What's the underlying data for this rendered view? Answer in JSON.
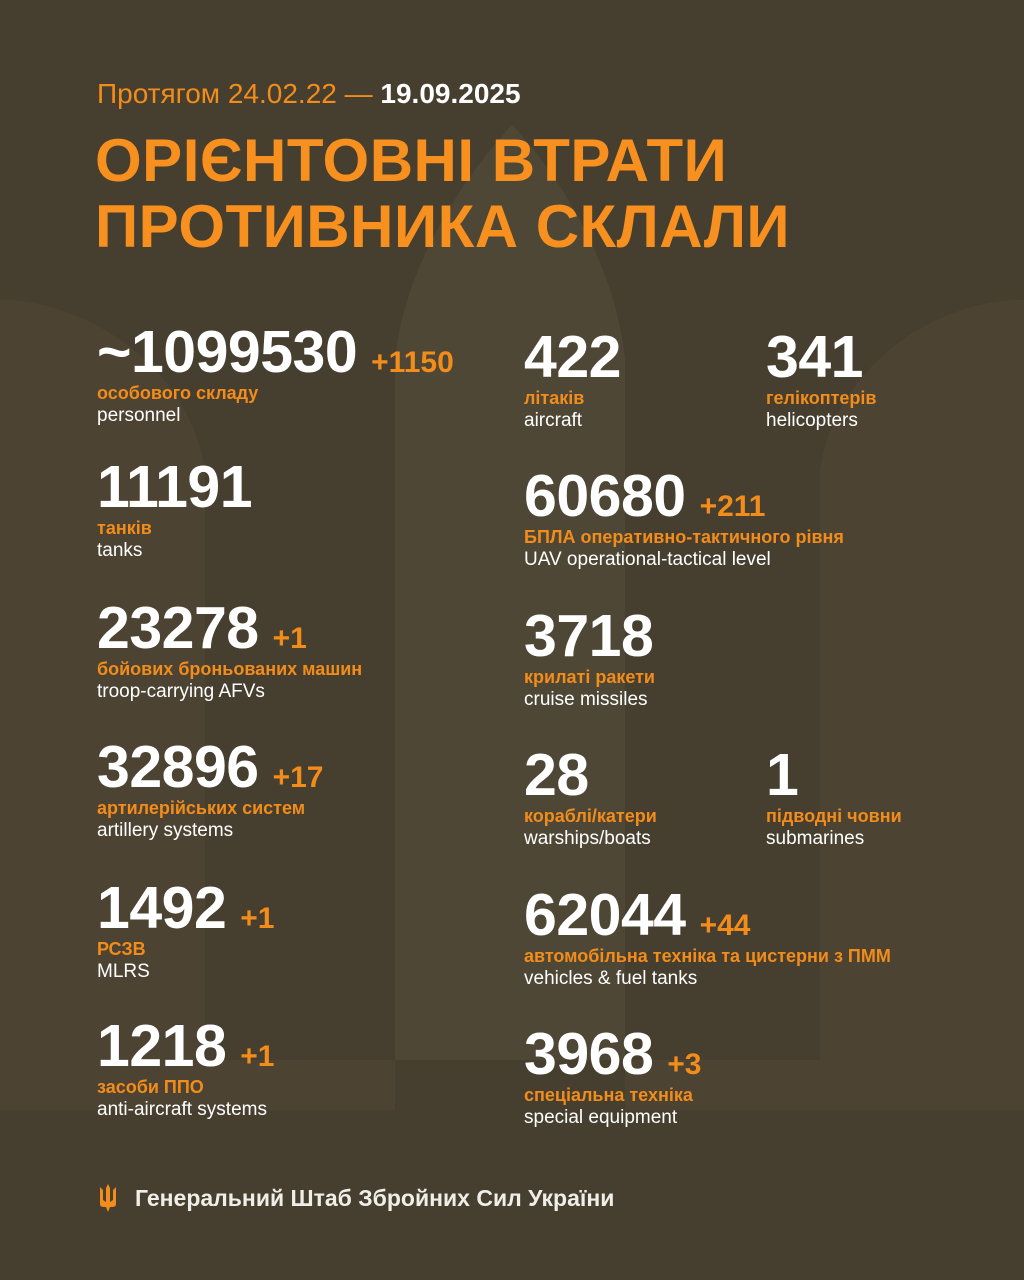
{
  "header": {
    "period_prefix": "Протягом 24.02.22 —",
    "period_date": "19.09.2025",
    "title_line1": "ОРІЄНТОВНІ ВТРАТИ",
    "title_line2": "ПРОТИВНИКА СКЛАЛИ"
  },
  "colors": {
    "background": "#463f30",
    "accent": "#f28c1a",
    "text": "#ffffff"
  },
  "stats": [
    {
      "value": "~1099530",
      "delta": "+1150",
      "label_ua": "особового складу",
      "label_en": "personnel"
    },
    {
      "value": "11191",
      "delta": "",
      "label_ua": "танків",
      "label_en": "tanks"
    },
    {
      "value": "23278",
      "delta": "+1",
      "label_ua": "бойових броньованих машин",
      "label_en": "troop-carrying AFVs"
    },
    {
      "value": "32896",
      "delta": "+17",
      "label_ua": "артилерійських систем",
      "label_en": "artillery systems"
    },
    {
      "value": "1492",
      "delta": "+1",
      "label_ua": "РСЗВ",
      "label_en": "MLRS"
    },
    {
      "value": "1218",
      "delta": "+1",
      "label_ua": "засоби ППО",
      "label_en": "anti-aircraft systems"
    },
    {
      "value": "422",
      "delta": "",
      "label_ua": "літаків",
      "label_en": "aircraft"
    },
    {
      "value": "341",
      "delta": "",
      "label_ua": "гелікоптерів",
      "label_en": "helicopters"
    },
    {
      "value": "60680",
      "delta": "+211",
      "label_ua": "БПЛА оперативно-тактичного рівня",
      "label_en": "UAV operational-tactical level"
    },
    {
      "value": "3718",
      "delta": "",
      "label_ua": "крилаті ракети",
      "label_en": "cruise missiles"
    },
    {
      "value": "28",
      "delta": "",
      "label_ua": "кораблі/катери",
      "label_en": "warships/boats"
    },
    {
      "value": "1",
      "delta": "",
      "label_ua": "підводні човни",
      "label_en": "submarines"
    },
    {
      "value": "62044",
      "delta": "+44",
      "label_ua": "автомобільна техніка та цистерни з ПММ",
      "label_en": "vehicles & fuel tanks"
    },
    {
      "value": "3968",
      "delta": "+3",
      "label_ua": "спеціальна техніка",
      "label_en": "special equipment"
    }
  ],
  "footer": {
    "icon": "trident-icon",
    "text": "Генеральний Штаб Збройних Сил України"
  }
}
